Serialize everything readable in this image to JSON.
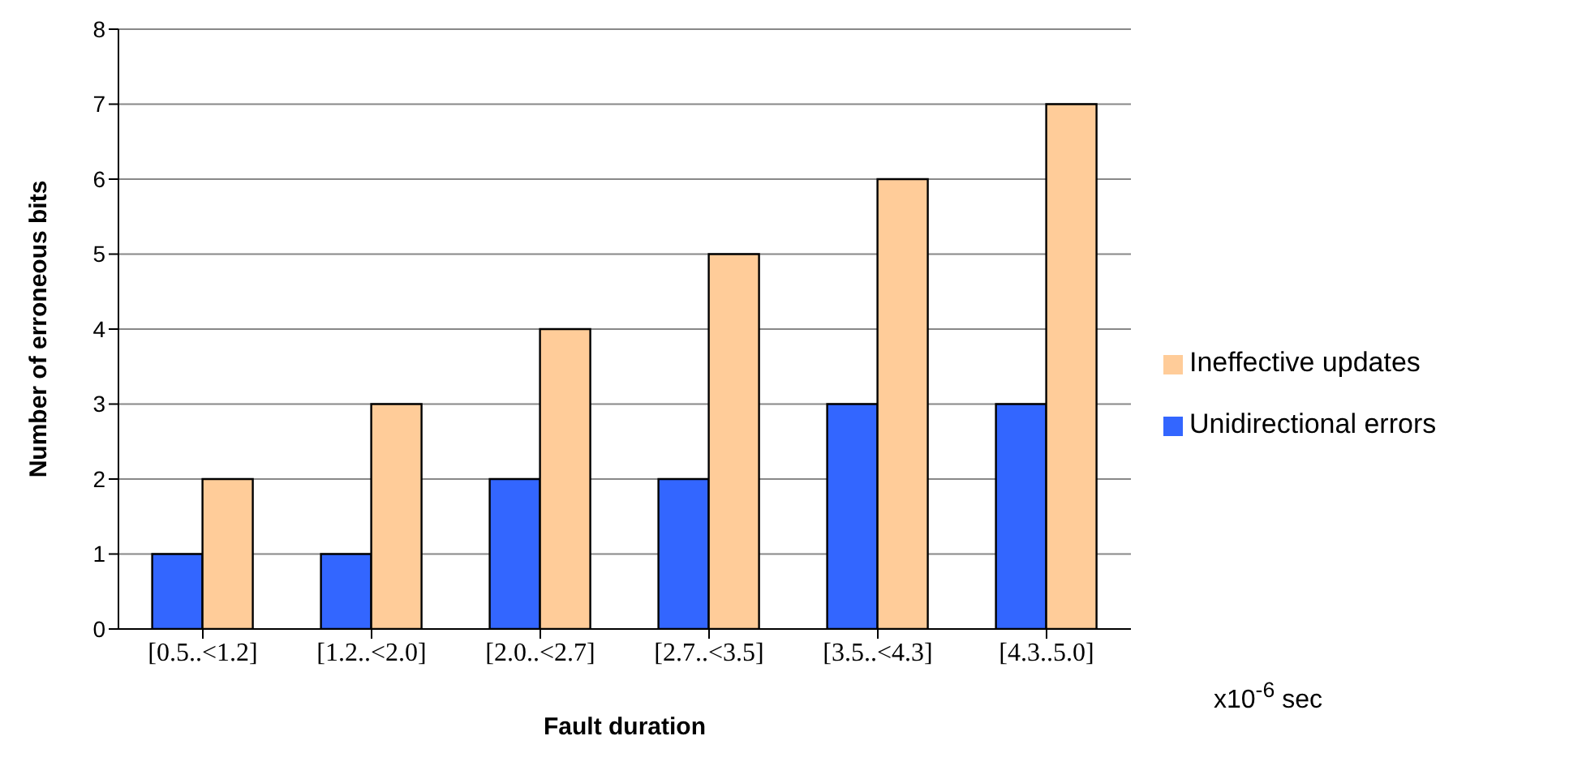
{
  "chart_data": {
    "type": "bar",
    "xlabel": "Fault duration",
    "ylabel": "Number of erroneous bits",
    "categories": [
      "[0.5..<1.2]",
      "[1.2..<2.0]",
      "[2.0..<2.7]",
      "[2.7..<3.5]",
      "[3.5..<4.3]",
      "[4.3..5.0]"
    ],
    "series": [
      {
        "name": "Unidirectional errors",
        "color": "#3366ff",
        "values": [
          1,
          1,
          2,
          2,
          3,
          3
        ]
      },
      {
        "name": "Ineffective updates",
        "color": "#ffcc99",
        "values": [
          2,
          3,
          4,
          5,
          6,
          7
        ]
      }
    ],
    "ylim": [
      0,
      8
    ],
    "yticks": [
      0,
      1,
      2,
      3,
      4,
      5,
      6,
      7,
      8
    ],
    "grid": "y",
    "legend": "right",
    "annotations": [
      "x10$^{-6}$ sec"
    ]
  }
}
